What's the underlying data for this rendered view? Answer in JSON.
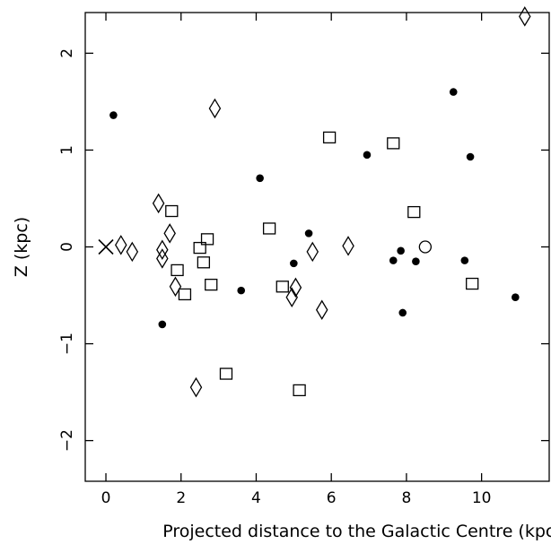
{
  "chart_data": {
    "type": "scatter",
    "title": "",
    "xlabel": "Projected distance to the Galactic Centre (kpc)",
    "ylabel": "Z (kpc)",
    "xlim": [
      -0.55,
      11.8
    ],
    "ylim": [
      -2.42,
      2.42
    ],
    "xticks": [
      0,
      2,
      4,
      6,
      8,
      10
    ],
    "yticks": [
      -2,
      -1,
      0,
      1,
      2
    ],
    "xtick_labels": [
      "0",
      "2",
      "4",
      "6",
      "8",
      "10"
    ],
    "ytick_labels": [
      "−2",
      "−1",
      "0",
      "1",
      "2"
    ],
    "grid": false,
    "legend": "none",
    "series": [
      {
        "marker": "filled-circle",
        "color": "#000000",
        "points": [
          [
            0.2,
            1.36
          ],
          [
            1.5,
            -0.8
          ],
          [
            3.6,
            -0.45
          ],
          [
            4.1,
            0.71
          ],
          [
            5.0,
            -0.17
          ],
          [
            5.4,
            0.14
          ],
          [
            6.95,
            0.95
          ],
          [
            7.65,
            -0.14
          ],
          [
            7.85,
            -0.04
          ],
          [
            7.9,
            -0.68
          ],
          [
            8.25,
            -0.15
          ],
          [
            9.25,
            1.6
          ],
          [
            9.55,
            -0.14
          ],
          [
            9.7,
            0.93
          ],
          [
            10.9,
            -0.52
          ]
        ]
      },
      {
        "marker": "open-square",
        "color": "#000000",
        "points": [
          [
            1.75,
            0.37
          ],
          [
            1.9,
            -0.24
          ],
          [
            2.1,
            -0.49
          ],
          [
            2.5,
            -0.01
          ],
          [
            2.6,
            -0.16
          ],
          [
            2.7,
            0.08
          ],
          [
            2.8,
            -0.39
          ],
          [
            3.2,
            -1.31
          ],
          [
            4.35,
            0.19
          ],
          [
            4.7,
            -0.41
          ],
          [
            5.15,
            -1.48
          ],
          [
            5.95,
            1.13
          ],
          [
            7.65,
            1.07
          ],
          [
            8.2,
            0.36
          ],
          [
            9.75,
            -0.38
          ]
        ]
      },
      {
        "marker": "open-diamond",
        "color": "#000000",
        "points": [
          [
            0.4,
            0.02
          ],
          [
            0.7,
            -0.05
          ],
          [
            1.4,
            0.45
          ],
          [
            1.5,
            -0.03
          ],
          [
            1.5,
            -0.12
          ],
          [
            1.7,
            0.14
          ],
          [
            1.85,
            -0.41
          ],
          [
            2.4,
            -1.45
          ],
          [
            2.9,
            1.43
          ],
          [
            4.95,
            -0.52
          ],
          [
            5.05,
            -0.42
          ],
          [
            5.5,
            -0.05
          ],
          [
            5.75,
            -0.65
          ],
          [
            6.45,
            0.01
          ],
          [
            11.15,
            2.38
          ]
        ]
      },
      {
        "marker": "open-circle",
        "color": "#000000",
        "points": [
          [
            8.5,
            0.0
          ]
        ]
      },
      {
        "marker": "cross",
        "color": "#000000",
        "points": [
          [
            0.0,
            0.0
          ]
        ]
      }
    ]
  }
}
